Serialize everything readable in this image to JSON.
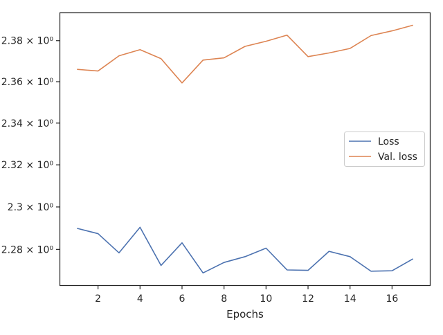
{
  "chart_data": {
    "type": "line",
    "xlabel": "Epochs",
    "ylabel": "",
    "x": [
      1,
      2,
      3,
      4,
      5,
      6,
      7,
      8,
      9,
      10,
      11,
      12,
      13,
      14,
      15,
      16,
      17
    ],
    "series": [
      {
        "name": "Loss",
        "color": "#4c72b0",
        "values": [
          2.2899,
          2.2874,
          2.2784,
          2.2904,
          2.2725,
          2.2831,
          2.269,
          2.2739,
          2.2766,
          2.2806,
          2.2704,
          2.2702,
          2.2791,
          2.2766,
          2.2698,
          2.27,
          2.2756
        ]
      },
      {
        "name": "Val. loss",
        "color": "#dd8452",
        "values": [
          2.366,
          2.3652,
          2.3726,
          2.3756,
          2.3712,
          2.3594,
          2.3705,
          2.3716,
          2.3772,
          2.3797,
          2.3827,
          2.3722,
          2.374,
          2.3762,
          2.3825,
          2.3848,
          2.3876
        ]
      }
    ],
    "x_ticks": [
      2,
      4,
      6,
      8,
      10,
      12,
      14,
      16
    ],
    "y_ticks": [
      2.28,
      2.3,
      2.32,
      2.34,
      2.36,
      2.38
    ],
    "y_tick_labels": [
      "2.28 × 10⁰",
      "2.3 × 10⁰",
      "2.32 × 10⁰",
      "2.34 × 10⁰",
      "2.36 × 10⁰",
      "2.38 × 10⁰"
    ],
    "xlim": [
      0.2,
      17.8
    ],
    "ylim": [
      2.2633,
      2.3935
    ],
    "yscale": "log",
    "grid": false,
    "legend_placement": "center-right"
  }
}
